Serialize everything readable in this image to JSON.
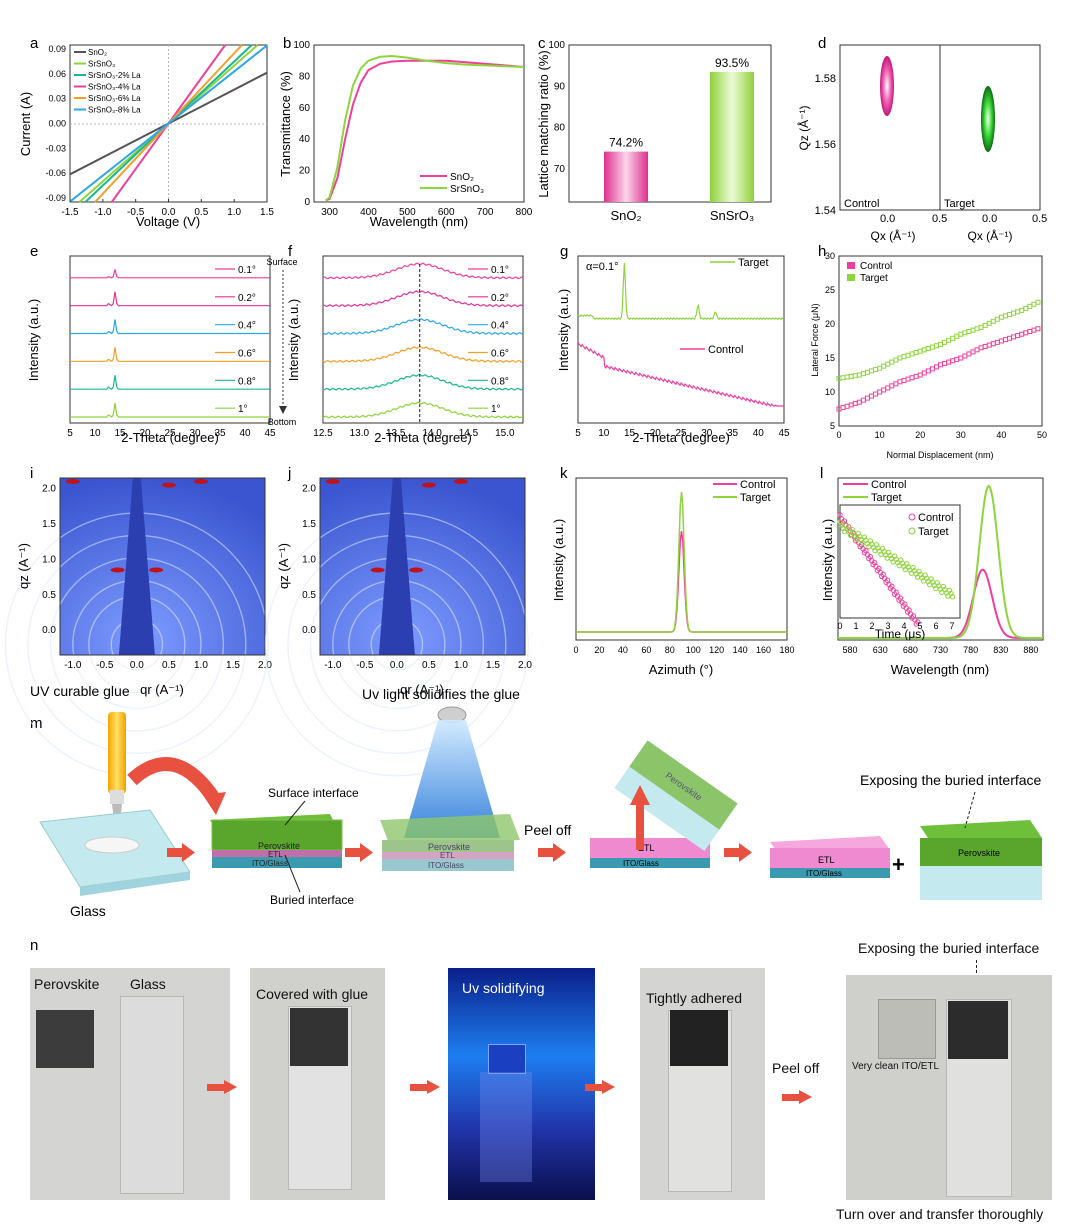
{
  "panel_letters": {
    "a": "a",
    "b": "b",
    "c": "c",
    "d": "d",
    "e": "e",
    "f": "f",
    "g": "g",
    "h": "h",
    "i": "i",
    "j": "j",
    "k": "k",
    "l": "l",
    "m": "m",
    "n": "n"
  },
  "colors": {
    "gray": "#555555",
    "green": "#8ed43c",
    "teal": "#19b88f",
    "pink": "#ee3f9c",
    "orange": "#f0a028",
    "blue": "#2ea7e8",
    "purple": "#a53fd8",
    "magenta": "#e0339a",
    "gisaxs_bg": "#4f6fe0",
    "red": "#e8503f"
  },
  "chart_data": [
    {
      "panel": "a",
      "type": "line",
      "xlabel": "Voltage (V)",
      "ylabel": "Current (A)",
      "xlim": [
        -1.5,
        1.5
      ],
      "ylim": [
        -0.095,
        0.095
      ],
      "xticks": [
        "-1.5",
        "-1.0",
        "-0.5",
        "0.0",
        "0.5",
        "1.0",
        "1.5"
      ],
      "yticks": [
        "-0.09",
        "-0.06",
        "-0.03",
        "0.00",
        "0.03",
        "0.06",
        "0.09"
      ],
      "series": [
        {
          "name": "SnO₂",
          "slope": 0.041
        },
        {
          "name": "SrSnO₃",
          "slope": 0.07
        },
        {
          "name": "SrSnO₃-2% La",
          "slope": 0.075
        },
        {
          "name": "SrSnO₃-4% La",
          "slope": 0.11
        },
        {
          "name": "SrSnO₃-6% La",
          "slope": 0.085
        },
        {
          "name": "SrSnO₃-8% La",
          "slope": 0.063
        }
      ]
    },
    {
      "panel": "b",
      "type": "line",
      "xlabel": "Wavelength (nm)",
      "ylabel": "Transmittance (%)",
      "xlim": [
        260,
        800
      ],
      "ylim": [
        0,
        100
      ],
      "xticks": [
        "300",
        "400",
        "500",
        "600",
        "700",
        "800"
      ],
      "yticks": [
        "0",
        "20",
        "40",
        "60",
        "80",
        "100"
      ],
      "series": [
        {
          "name": "SnO₂",
          "x": [
            290,
            300,
            320,
            340,
            360,
            380,
            400,
            430,
            460,
            500,
            550,
            600,
            650,
            700,
            750,
            800
          ],
          "y": [
            1,
            2,
            15,
            40,
            62,
            76,
            84,
            88,
            89.5,
            90,
            90,
            90,
            89,
            88,
            87,
            86
          ]
        },
        {
          "name": "SrSnO₃",
          "x": [
            290,
            300,
            320,
            340,
            360,
            380,
            400,
            430,
            460,
            500,
            550,
            600,
            650,
            700,
            750,
            800
          ],
          "y": [
            1,
            3,
            22,
            52,
            74,
            85,
            90,
            92.5,
            93,
            92,
            90,
            88.5,
            87.5,
            87,
            86.5,
            86
          ]
        }
      ]
    },
    {
      "panel": "c",
      "type": "bar",
      "ylabel": "Lattice matching ratio (%)",
      "ylim": [
        62,
        100
      ],
      "yticks": [
        "70",
        "80",
        "90",
        "100"
      ],
      "categories": [
        "SnO₂",
        "SnSrO₃"
      ],
      "values": [
        74.2,
        93.5
      ],
      "data_labels": [
        "74.2%",
        "93.5%"
      ]
    },
    {
      "panel": "d",
      "type": "heatmap",
      "ylabel": "Qz (Å⁻¹)",
      "xlabel": "Qx (Å⁻¹)",
      "ylim": [
        1.54,
        1.59
      ],
      "yticks": [
        "1.54",
        "1.56",
        "1.58"
      ],
      "xticks_left": [
        "0.0",
        "0.5"
      ],
      "xticks_right": [
        "0.0",
        "0.5"
      ],
      "labels": [
        "Control",
        "Target"
      ],
      "peaks": [
        {
          "name": "Control",
          "qx": 0.02,
          "qz": 1.578
        },
        {
          "name": "Target",
          "qx": 0.0,
          "qz": 1.567
        }
      ]
    },
    {
      "panel": "e",
      "type": "line",
      "xlabel": "2-Theta (degree)",
      "ylabel": "Intensity (a.u.)",
      "xlim": [
        5,
        45
      ],
      "xticks": [
        "5",
        "10",
        "15",
        "20",
        "25",
        "30",
        "35",
        "40",
        "45"
      ],
      "series": [
        {
          "name": "0.1°"
        },
        {
          "name": "0.2°"
        },
        {
          "name": "0.4°"
        },
        {
          "name": "0.6°"
        },
        {
          "name": "0.8°"
        },
        {
          "name": "1°"
        }
      ],
      "top_note": "Surface",
      "bottom_note": "Bottom",
      "peak_x": 14.0
    },
    {
      "panel": "f",
      "type": "line",
      "xlabel": "2-Theta (degree)",
      "ylabel": "Intensity (a.u.)",
      "xlim": [
        12.5,
        15.25
      ],
      "xticks": [
        "12.5",
        "13.0",
        "13.5",
        "14.0",
        "14.5",
        "15.0"
      ],
      "series": [
        {
          "name": "0.1°"
        },
        {
          "name": "0.2°"
        },
        {
          "name": "0.4°"
        },
        {
          "name": "0.6°"
        },
        {
          "name": "0.8°"
        },
        {
          "name": "1°"
        }
      ],
      "peak_x": 13.83
    },
    {
      "panel": "g",
      "type": "line",
      "xlabel": "2-Theta (degree)",
      "ylabel": "Intensity (a.u.)",
      "xlim": [
        5,
        45
      ],
      "xticks": [
        "5",
        "10",
        "15",
        "20",
        "25",
        "30",
        "35",
        "40",
        "45"
      ],
      "series": [
        {
          "name": "Target"
        },
        {
          "name": "Control"
        }
      ],
      "note": "α=0.1°"
    },
    {
      "panel": "h",
      "type": "scatter",
      "xlabel": "Normal Displacement (nm)",
      "ylabel": "Lateral Force (μN)",
      "xlim": [
        0,
        50
      ],
      "ylim": [
        5,
        30
      ],
      "xticks": [
        "0",
        "10",
        "20",
        "30",
        "40",
        "50"
      ],
      "yticks": [
        "5",
        "10",
        "15",
        "20",
        "25",
        "30"
      ],
      "series": [
        {
          "name": "Control",
          "x": [
            0,
            5,
            10,
            15,
            20,
            25,
            30,
            35,
            40,
            45,
            50
          ],
          "y": [
            7.5,
            8.5,
            10,
            11.5,
            12.5,
            14,
            15,
            16.5,
            17.5,
            18.5,
            19.5
          ]
        },
        {
          "name": "Target",
          "x": [
            0,
            5,
            10,
            15,
            20,
            25,
            30,
            35,
            40,
            45,
            50
          ],
          "y": [
            12,
            12.5,
            13.5,
            15,
            16,
            17,
            18.5,
            19.5,
            21,
            22,
            23.5
          ]
        }
      ]
    },
    {
      "panel": "i",
      "type": "heatmap",
      "xlabel": "qr (A⁻¹)",
      "ylabel": "qz (A⁻¹)",
      "xticks": [
        "-1.0",
        "-0.5",
        "0.0",
        "0.5",
        "1.0",
        "1.5",
        "2.0"
      ],
      "yticks": [
        "0.0",
        "0.5",
        "1.0",
        "1.5",
        "2.0"
      ]
    },
    {
      "panel": "j",
      "type": "heatmap",
      "xlabel": "qr (A⁻¹)",
      "ylabel": "qz (A⁻¹)",
      "xticks": [
        "-1.0",
        "-0.5",
        "0.0",
        "0.5",
        "1.0",
        "1.5",
        "2.0"
      ],
      "yticks": [
        "0.0",
        "0.5",
        "1.0",
        "1.5",
        "2.0"
      ]
    },
    {
      "panel": "k",
      "type": "line",
      "xlabel": "Azimuth (°)",
      "ylabel": "Intensity (a.u.)",
      "xlim": [
        0,
        180
      ],
      "xticks": [
        "0",
        "20",
        "40",
        "60",
        "80",
        "100",
        "120",
        "140",
        "160",
        "180"
      ],
      "series": [
        {
          "name": "Control",
          "peak": 0.72
        },
        {
          "name": "Target",
          "peak": 1.0
        }
      ],
      "peak_x": 90
    },
    {
      "panel": "l",
      "type": "line",
      "xlabel": "Wavelength (nm)",
      "ylabel": "Intensity (a.u.)",
      "xlim": [
        560,
        900
      ],
      "xticks": [
        "580",
        "630",
        "680",
        "730",
        "780",
        "830",
        "880"
      ],
      "series": [
        {
          "name": "Control",
          "peak_x": 800,
          "peak": 0.45
        },
        {
          "name": "Target",
          "peak_x": 810,
          "peak": 1.0
        }
      ],
      "inset": {
        "xlabel": "Time (μs)",
        "xticks": [
          "0",
          "1",
          "2",
          "3",
          "4",
          "5",
          "6",
          "7"
        ],
        "series": [
          "Control",
          "Target"
        ]
      }
    }
  ],
  "schematic": {
    "title_uv_glue": "UV curable glue",
    "title_uv_light": "Uv light solidifies the glue",
    "glass": "Glass",
    "surface_interface": "Surface interface",
    "buried_interface": "Buried interface",
    "perovskite": "Perovskite",
    "etl": "ETL",
    "ito": "ITO/Glass",
    "peel_off": "Peel off",
    "exposing": "Exposing the buried interface",
    "plus": "+"
  },
  "photos": {
    "perovskite": "Perovskite",
    "glass": "Glass",
    "covered": "Covered with glue",
    "uv": "Uv solidifying",
    "tight": "Tightly adhered",
    "peel_off": "Peel off",
    "exposing": "Exposing the buried interface",
    "clean": "Very clean ITO/ETL",
    "turn_over": "Turn over and transfer thoroughly"
  }
}
